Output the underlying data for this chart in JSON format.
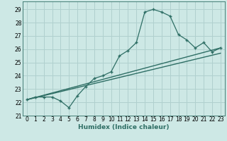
{
  "bg_color": "#cde8e5",
  "grid_color": "#b0d0ce",
  "line_color": "#2e6e65",
  "xlabel": "Humidex (Indice chaleur)",
  "xlim": [
    -0.5,
    23.5
  ],
  "ylim": [
    21.0,
    29.6
  ],
  "yticks": [
    21,
    22,
    23,
    24,
    25,
    26,
    27,
    28,
    29
  ],
  "xticks": [
    0,
    1,
    2,
    3,
    4,
    5,
    6,
    7,
    8,
    9,
    10,
    11,
    12,
    13,
    14,
    15,
    16,
    17,
    18,
    19,
    20,
    21,
    22,
    23
  ],
  "series1_x": [
    0,
    1,
    2,
    3,
    4,
    5,
    6,
    7,
    8,
    9,
    10,
    11,
    12,
    13,
    14,
    15,
    16,
    17,
    18,
    19,
    20,
    21,
    22,
    23
  ],
  "series1_y": [
    22.2,
    22.4,
    22.4,
    22.4,
    22.1,
    21.6,
    22.5,
    23.2,
    23.8,
    24.0,
    24.3,
    25.5,
    25.9,
    26.5,
    28.8,
    29.0,
    28.8,
    28.5,
    27.1,
    26.7,
    26.1,
    26.5,
    25.8,
    26.1
  ],
  "series2_x": [
    0,
    23
  ],
  "series2_y": [
    22.2,
    26.1
  ],
  "series3_x": [
    0,
    23
  ],
  "series3_y": [
    22.2,
    25.7
  ],
  "xlabel_fontsize": 6.5,
  "tick_fontsize": 5.5
}
